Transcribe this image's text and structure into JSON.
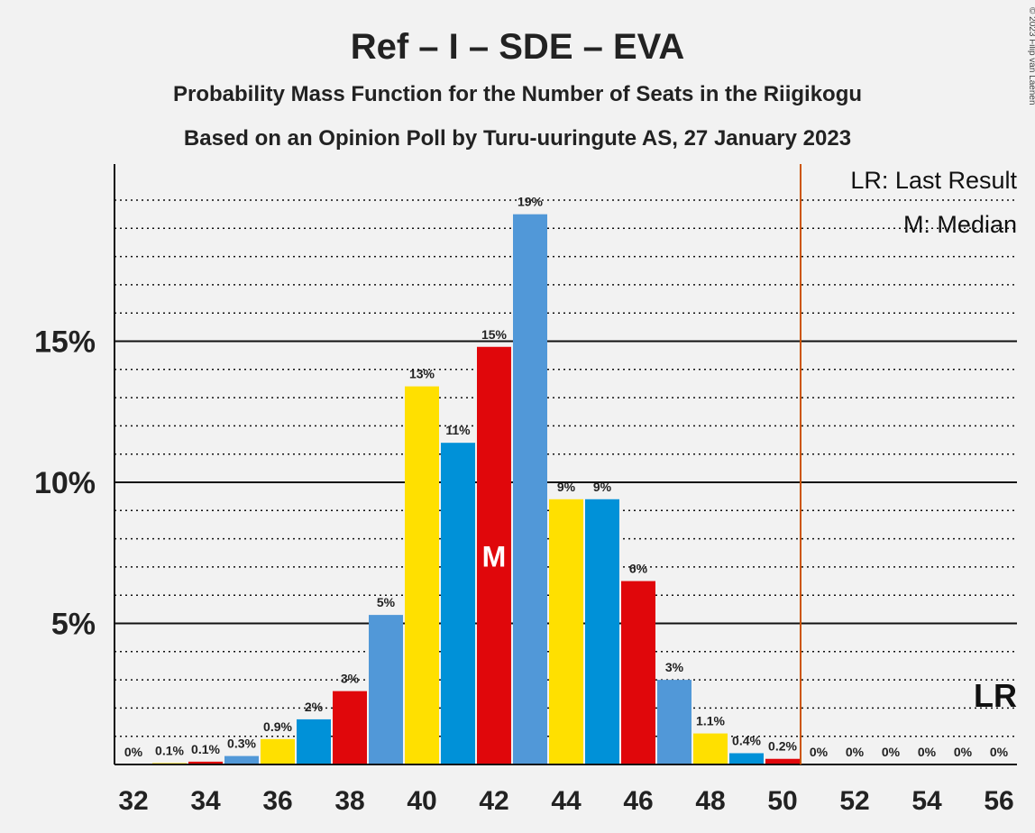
{
  "chart_data": {
    "type": "bar",
    "title": "Ref – I – SDE – EVA",
    "subtitle1": "Probability Mass Function for the Number of Seats in the Riigikogu",
    "subtitle2": "Based on an Opinion Poll by Turu-uuringute AS, 27 January 2023",
    "credit": "© 2023 Filip van Laenen",
    "x": [
      32,
      33,
      34,
      35,
      36,
      37,
      38,
      39,
      40,
      41,
      42,
      43,
      44,
      45,
      46,
      47,
      48,
      49,
      50,
      51,
      52,
      53,
      54,
      55,
      56
    ],
    "values": [
      0,
      0.05,
      0.1,
      0.3,
      0.9,
      1.6,
      2.6,
      5.3,
      13.4,
      11.4,
      14.8,
      19.5,
      9.4,
      9.4,
      6.5,
      3.0,
      1.1,
      0.4,
      0.2,
      0,
      0,
      0,
      0,
      0,
      0
    ],
    "labels": [
      "0%",
      "0.1%",
      "0.1%",
      "0.3%",
      "0.9%",
      "2%",
      "3%",
      "5%",
      "13%",
      "11%",
      "15%",
      "19%",
      "9%",
      "9%",
      "6%",
      "3%",
      "1.1%",
      "0.4%",
      "0.2%",
      "0%",
      "0%",
      "0%",
      "0%",
      "0%",
      "0%"
    ],
    "colors": [
      "#e0070b",
      "#ffe000",
      "#e0070b",
      "#5198d8",
      "#ffe000",
      "#0091d8",
      "#e0070b",
      "#5198d8",
      "#ffe000",
      "#0091d8",
      "#e0070b",
      "#5198d8",
      "#ffe000",
      "#0091d8",
      "#e0070b",
      "#5198d8",
      "#ffe000",
      "#0091d8",
      "#e0070b",
      "#5198d8",
      "#ffe000",
      "#0091d8",
      "#e0070b",
      "#5198d8",
      "#ffe000"
    ],
    "xticks": [
      32,
      34,
      36,
      38,
      40,
      42,
      44,
      46,
      48,
      50,
      52,
      54,
      56
    ],
    "yticks": [
      5,
      10,
      15
    ],
    "ytick_labels": [
      "5%",
      "10%",
      "15%"
    ],
    "ylim": [
      0,
      21.25
    ],
    "median": 42,
    "median_label": "M",
    "last_result": 56,
    "last_result_label": "LR",
    "majority_line": 50.5,
    "majority_color": "#cc5500",
    "legend": [
      "LR: Last Result",
      "M: Median"
    ],
    "legend_position": "top-right",
    "grid": true
  }
}
